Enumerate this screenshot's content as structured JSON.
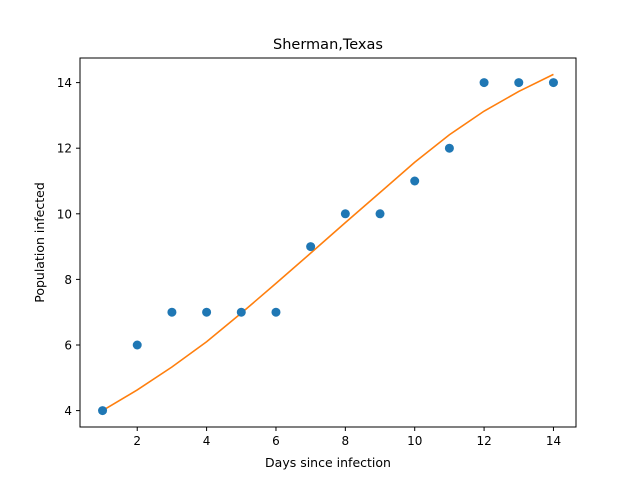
{
  "chart_data": {
    "type": "scatter",
    "title": "Sherman,Texas",
    "xlabel": "Days since infection",
    "ylabel": "Population infected",
    "xlim": [
      0.35,
      14.65
    ],
    "ylim": [
      3.5,
      14.75
    ],
    "xticks": [
      2,
      4,
      6,
      8,
      10,
      12,
      14
    ],
    "yticks": [
      4,
      6,
      8,
      10,
      12,
      14
    ],
    "grid": false,
    "series": [
      {
        "type": "scatter",
        "color": "#1f77b4",
        "x": [
          1,
          2,
          3,
          4,
          5,
          6,
          7,
          8,
          9,
          10,
          11,
          12,
          13,
          14
        ],
        "y": [
          4,
          6,
          7,
          7,
          7,
          7,
          9,
          10,
          10,
          11,
          12,
          14,
          14,
          14
        ]
      },
      {
        "type": "line",
        "color": "#ff7f0e",
        "x": [
          1,
          2,
          3,
          4,
          5,
          6,
          7,
          8,
          9,
          10,
          11,
          12,
          13,
          14
        ],
        "y": [
          4.0,
          4.63,
          5.33,
          6.1,
          6.97,
          7.88,
          8.8,
          9.73,
          10.65,
          11.57,
          12.41,
          13.13,
          13.73,
          14.25
        ]
      }
    ]
  }
}
